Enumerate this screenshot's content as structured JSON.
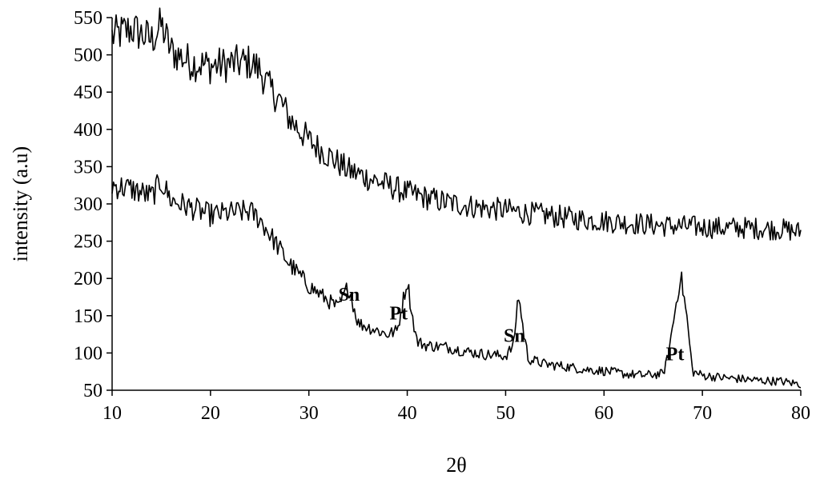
{
  "chart_data": {
    "type": "line",
    "title": "",
    "xlabel": "2θ",
    "ylabel": "intensity  (a.u)",
    "xlim": [
      10,
      80
    ],
    "ylim": [
      50,
      550
    ],
    "xticks": [
      10,
      20,
      30,
      40,
      50,
      60,
      70,
      80
    ],
    "yticks": [
      50,
      100,
      150,
      200,
      250,
      300,
      350,
      400,
      450,
      500,
      550
    ],
    "grid": false,
    "legend": "none",
    "line_color": "#000000",
    "series": [
      {
        "x": [
          10,
          12,
          14,
          15,
          16,
          18,
          20,
          22,
          24,
          25,
          26,
          27,
          28,
          30,
          32,
          34,
          36,
          38,
          40,
          42,
          44,
          46,
          48,
          50,
          52,
          54,
          56,
          58,
          60,
          62,
          64,
          66,
          68,
          70,
          72,
          74,
          76,
          78,
          80
        ],
        "values": [
          525,
          535,
          520,
          540,
          505,
          490,
          485,
          488,
          490,
          480,
          455,
          440,
          415,
          385,
          365,
          345,
          335,
          325,
          315,
          308,
          302,
          298,
          294,
          292,
          288,
          285,
          282,
          279,
          277,
          275,
          273,
          271,
          270,
          269,
          268,
          268,
          267,
          266,
          262
        ]
      },
      {
        "x": [
          10,
          12,
          14,
          15,
          16,
          18,
          20,
          22,
          24,
          25,
          26,
          27,
          28,
          30,
          32,
          33,
          34,
          35,
          36,
          38,
          39,
          39.5,
          40,
          40.5,
          41,
          42,
          44,
          46,
          48,
          50,
          50.8,
          51.3,
          51.8,
          52.3,
          54,
          56,
          58,
          60,
          62,
          64,
          66,
          66.5,
          67.2,
          67.8,
          68.4,
          69,
          70,
          72,
          74,
          76,
          78,
          80
        ],
        "values": [
          325,
          320,
          310,
          330,
          305,
          295,
          285,
          288,
          290,
          280,
          260,
          240,
          220,
          190,
          170,
          160,
          190,
          140,
          135,
          125,
          130,
          165,
          198,
          150,
          115,
          110,
          108,
          102,
          98,
          96,
          110,
          180,
          130,
          92,
          85,
          82,
          78,
          76,
          72,
          70,
          72,
          95,
          155,
          205,
          150,
          75,
          70,
          67,
          65,
          63,
          62,
          58
        ]
      }
    ],
    "annotations": [
      {
        "text": "Sn",
        "x": 33,
        "y": 170
      },
      {
        "text": "Pt",
        "x": 38.2,
        "y": 145
      },
      {
        "text": "Sn",
        "x": 49.8,
        "y": 115
      },
      {
        "text": "Pt",
        "x": 66.3,
        "y": 90
      }
    ]
  }
}
